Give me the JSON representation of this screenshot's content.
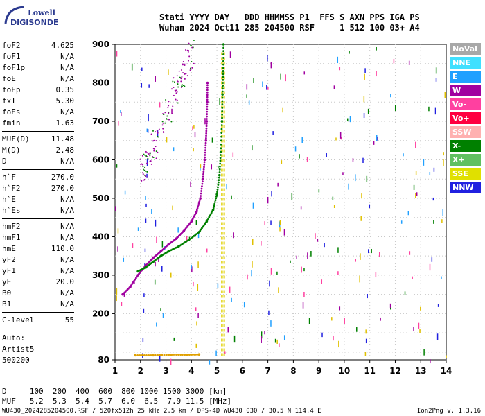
{
  "logo": {
    "line1": "Lowell",
    "line2": "DIGISONDE"
  },
  "header": {
    "row1": "Stati YYYY DAY   DDD HHMMSS P1  FFS S AXN PPS IGA PS",
    "row2": "Wuhan 2024 Oct11 285 204500 RSF     1 512 100 03+ A4"
  },
  "params": {
    "group1": [
      {
        "k": "foF2",
        "v": "4.625"
      },
      {
        "k": "foF1",
        "v": "N/A"
      },
      {
        "k": "foF1p",
        "v": "N/A"
      },
      {
        "k": "foE",
        "v": "N/A"
      },
      {
        "k": "foEp",
        "v": "0.35"
      },
      {
        "k": "fxI",
        "v": "5.30"
      },
      {
        "k": "foEs",
        "v": "N/A"
      },
      {
        "k": "fmin",
        "v": "1.63"
      }
    ],
    "group2": [
      {
        "k": "MUF(D)",
        "v": "11.48"
      },
      {
        "k": "M(D)",
        "v": "2.48"
      },
      {
        "k": "D",
        "v": "N/A"
      }
    ],
    "group3": [
      {
        "k": "h`F",
        "v": "270.0"
      },
      {
        "k": "h`F2",
        "v": "270.0"
      },
      {
        "k": "h`E",
        "v": "N/A"
      },
      {
        "k": "h`Es",
        "v": "N/A"
      }
    ],
    "group4": [
      {
        "k": "hmF2",
        "v": "N/A"
      },
      {
        "k": "hmF1",
        "v": "N/A"
      },
      {
        "k": "hmE",
        "v": "110.0"
      },
      {
        "k": "yF2",
        "v": "N/A"
      },
      {
        "k": "yF1",
        "v": "N/A"
      },
      {
        "k": "yE",
        "v": "20.0"
      },
      {
        "k": "B0",
        "v": "N/A"
      },
      {
        "k": "B1",
        "v": "N/A"
      }
    ],
    "group5": [
      {
        "k": "C-level",
        "v": "55"
      }
    ]
  },
  "auto": {
    "line1": "Auto:",
    "line2": "Artist5",
    "line3": "500200"
  },
  "legend": [
    {
      "label": "NoVal",
      "color": "#a8a8a8"
    },
    {
      "label": "NNE",
      "color": "#40e0ff"
    },
    {
      "label": "E",
      "color": "#20a0ff"
    },
    {
      "label": "W",
      "color": "#a000a0"
    },
    {
      "label": "Vo-",
      "color": "#ff40a0"
    },
    {
      "label": "Vo+",
      "color": "#ff0040"
    },
    {
      "label": "SSW",
      "color": "#ffb0b0"
    },
    {
      "label": "X-",
      "color": "#008000"
    },
    {
      "label": "X+",
      "color": "#60c060"
    },
    {
      "label": "SSE",
      "color": "#e0e000"
    },
    {
      "label": "NNW",
      "color": "#2020e0"
    }
  ],
  "muf_table": {
    "row1": "D     100  200  400  600  800 1000 1500 3000 [km]",
    "row2": "MUF   5.2  5.3  5.4  5.7  6.0  6.5  7.9 11.5 [MHz]"
  },
  "footer": {
    "left": "WU430_2024285204500.RSF / 520fx512h 25 kHz 2.5 km / DPS-4D WU430 030 / 30.5 N 114.4 E",
    "right": "Ion2Png v. 1.3.16"
  },
  "chart_data": {
    "type": "scatter",
    "title": "",
    "xlabel": "",
    "ylabel": "",
    "xlim": [
      1,
      14
    ],
    "ylim": [
      80,
      900
    ],
    "xticks": [
      1,
      2,
      3,
      4,
      5,
      6,
      7,
      8,
      9,
      10,
      11,
      12,
      13,
      14
    ],
    "yticks": [
      80,
      200,
      300,
      400,
      500,
      600,
      700,
      800,
      900
    ],
    "grid": true,
    "legend_position": "right",
    "series": [
      {
        "name": "Vo-",
        "color": "#a000a0",
        "points": [
          [
            1.3,
            250
          ],
          [
            1.6,
            270
          ],
          [
            1.9,
            300
          ],
          [
            2.2,
            325
          ],
          [
            2.5,
            345
          ],
          [
            2.8,
            362
          ],
          [
            3.1,
            380
          ],
          [
            3.4,
            395
          ],
          [
            3.7,
            415
          ],
          [
            4.0,
            440
          ],
          [
            4.2,
            465
          ],
          [
            4.35,
            500
          ],
          [
            4.45,
            550
          ],
          [
            4.52,
            600
          ],
          [
            4.57,
            650
          ],
          [
            4.6,
            700
          ],
          [
            4.62,
            750
          ],
          [
            4.63,
            800
          ]
        ]
      },
      {
        "name": "X-",
        "color": "#008000",
        "points": [
          [
            1.9,
            310
          ],
          [
            2.2,
            320
          ],
          [
            2.5,
            335
          ],
          [
            2.8,
            350
          ],
          [
            3.1,
            362
          ],
          [
            3.5,
            375
          ],
          [
            3.9,
            392
          ],
          [
            4.3,
            412
          ],
          [
            4.6,
            440
          ],
          [
            4.85,
            470
          ],
          [
            5.0,
            510
          ],
          [
            5.1,
            560
          ],
          [
            5.15,
            620
          ],
          [
            5.2,
            700
          ],
          [
            5.22,
            770
          ],
          [
            5.25,
            830
          ],
          [
            5.26,
            900
          ]
        ]
      },
      {
        "name": "Es",
        "color": "#e0a000",
        "points": [
          [
            1.8,
            92
          ],
          [
            2.5,
            92
          ],
          [
            3.2,
            93
          ],
          [
            3.8,
            93
          ],
          [
            4.3,
            94
          ]
        ]
      }
    ]
  }
}
